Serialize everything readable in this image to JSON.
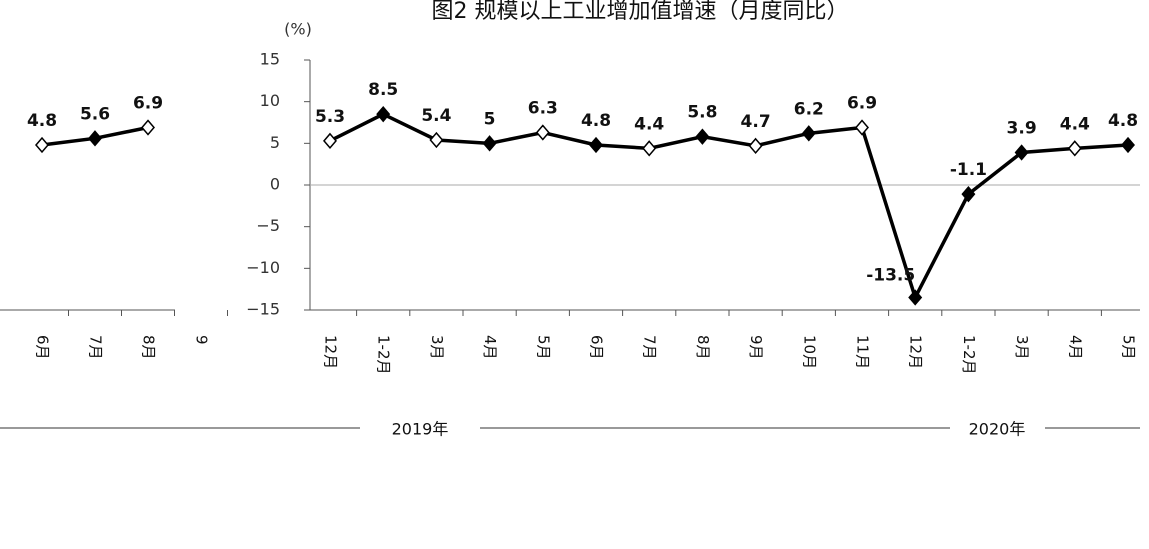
{
  "chart_data": [
    {
      "type": "line",
      "title": "图2 规模以上工业增加值增速（月度同比）",
      "unit": "(%)",
      "categories": [
        "12月",
        "1-2月",
        "3月",
        "4月",
        "5月",
        "6月",
        "7月",
        "8月",
        "9月",
        "10月",
        "11月",
        "12月",
        "1-2月",
        "3月",
        "4月",
        "5月"
      ],
      "values": [
        5.3,
        8.5,
        5.4,
        5.0,
        6.3,
        4.8,
        4.4,
        5.8,
        4.7,
        6.2,
        6.9,
        -13.5,
        -1.1,
        3.9,
        4.4,
        4.8
      ],
      "groups": [
        "2019年",
        "2020年"
      ],
      "color": "#000000",
      "ylim": [
        -15,
        15
      ],
      "yticks": [
        {
          "value": -15,
          "label": "−15"
        },
        {
          "value": -10,
          "label": "−10"
        },
        {
          "value": -5,
          "label": "−5"
        },
        0,
        5,
        10,
        15
      ]
    },
    {
      "type": "line",
      "categories": [
        "6月",
        "7月",
        "8月",
        "9"
      ],
      "values": [
        4.8,
        5.6,
        6.9,
        null
      ],
      "color": "#000000",
      "ylim": [
        -15,
        15
      ]
    }
  ]
}
